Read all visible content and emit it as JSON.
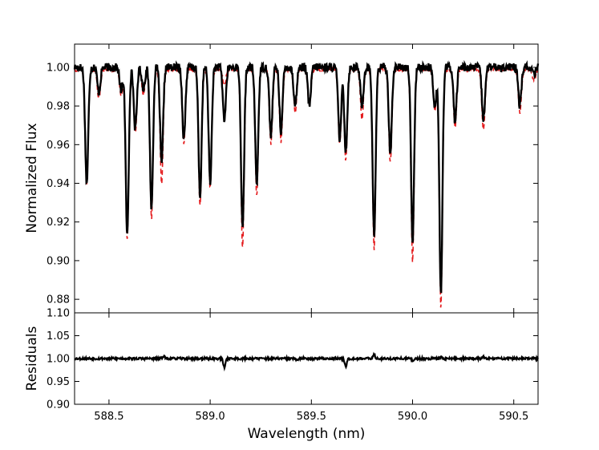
{
  "chart_data": [
    {
      "type": "line",
      "title": "",
      "xlabel": "",
      "ylabel": "Normalized Flux",
      "xlim": [
        588.33,
        590.62
      ],
      "ylim": [
        0.873,
        1.012
      ],
      "xticks": [],
      "yticks": [
        0.88,
        0.9,
        0.92,
        0.94,
        0.96,
        0.98,
        1.0
      ],
      "ytick_labels": [
        "0.88",
        "0.90",
        "0.92",
        "0.94",
        "0.96",
        "0.98",
        "1.00"
      ],
      "grid": false,
      "continuum": 1.0,
      "absorption_lines": [
        {
          "x": 588.39,
          "observed": 0.94,
          "model": 0.941
        },
        {
          "x": 588.45,
          "observed": 0.987,
          "model": 0.985
        },
        {
          "x": 588.56,
          "observed": 0.988,
          "model": 0.987
        },
        {
          "x": 588.59,
          "observed": 0.913,
          "model": 0.912
        },
        {
          "x": 588.63,
          "observed": 0.968,
          "model": 0.967
        },
        {
          "x": 588.67,
          "observed": 0.989,
          "model": 0.987
        },
        {
          "x": 588.71,
          "observed": 0.927,
          "model": 0.923
        },
        {
          "x": 588.76,
          "observed": 0.95,
          "model": 0.941
        },
        {
          "x": 588.87,
          "observed": 0.963,
          "model": 0.962
        },
        {
          "x": 588.95,
          "observed": 0.933,
          "model": 0.929
        },
        {
          "x": 589.0,
          "observed": 0.94,
          "model": 0.939
        },
        {
          "x": 589.07,
          "observed": 0.973,
          "model": 0.992
        },
        {
          "x": 589.16,
          "observed": 0.916,
          "model": 0.907
        },
        {
          "x": 589.23,
          "observed": 0.94,
          "model": 0.935
        },
        {
          "x": 589.3,
          "observed": 0.965,
          "model": 0.962
        },
        {
          "x": 589.35,
          "observed": 0.967,
          "model": 0.963
        },
        {
          "x": 589.42,
          "observed": 0.98,
          "model": 0.978
        },
        {
          "x": 589.49,
          "observed": 0.98,
          "model": 0.981
        },
        {
          "x": 589.64,
          "observed": 0.963,
          "model": 0.962
        },
        {
          "x": 589.67,
          "observed": 0.957,
          "model": 0.953
        },
        {
          "x": 589.75,
          "observed": 0.98,
          "model": 0.974
        },
        {
          "x": 589.81,
          "observed": 0.913,
          "model": 0.907
        },
        {
          "x": 589.89,
          "observed": 0.956,
          "model": 0.952
        },
        {
          "x": 590.0,
          "observed": 0.91,
          "model": 0.901
        },
        {
          "x": 590.11,
          "observed": 0.98,
          "model": 0.979
        },
        {
          "x": 590.14,
          "observed": 0.883,
          "model": 0.877
        },
        {
          "x": 590.21,
          "observed": 0.972,
          "model": 0.97
        },
        {
          "x": 590.35,
          "observed": 0.973,
          "model": 0.968
        },
        {
          "x": 590.53,
          "observed": 0.98,
          "model": 0.978
        },
        {
          "x": 590.6,
          "observed": 0.996,
          "model": 0.994
        }
      ],
      "series": [
        {
          "color": "#000000",
          "style": "solid",
          "source": "observed"
        },
        {
          "color": "#e41a1c",
          "style": "dashed",
          "source": "model"
        }
      ]
    },
    {
      "type": "line",
      "title": "",
      "xlabel": "Wavelength (nm)",
      "ylabel": "Residuals",
      "xlim": [
        588.33,
        590.62
      ],
      "ylim": [
        0.9,
        1.1
      ],
      "xticks": [
        588.5,
        589.0,
        589.5,
        590.0,
        590.5
      ],
      "xtick_labels": [
        "588.5",
        "589.0",
        "589.5",
        "590.0",
        "590.5"
      ],
      "yticks": [
        0.9,
        0.95,
        1.0,
        1.05,
        1.1
      ],
      "ytick_labels": [
        "0.90",
        "0.95",
        "1.00",
        "1.05",
        "1.10"
      ],
      "grid": false,
      "baseline": 1.0,
      "features": [
        {
          "x": 588.77,
          "value": 1.006
        },
        {
          "x": 589.07,
          "value": 0.98
        },
        {
          "x": 589.43,
          "value": 0.995
        },
        {
          "x": 589.67,
          "value": 0.983
        },
        {
          "x": 589.81,
          "value": 1.008
        },
        {
          "x": 590.0,
          "value": 0.995
        },
        {
          "x": 590.14,
          "value": 1.003
        },
        {
          "x": 590.35,
          "value": 1.004
        }
      ],
      "series": [
        {
          "color": "#000000",
          "style": "solid"
        }
      ]
    }
  ]
}
